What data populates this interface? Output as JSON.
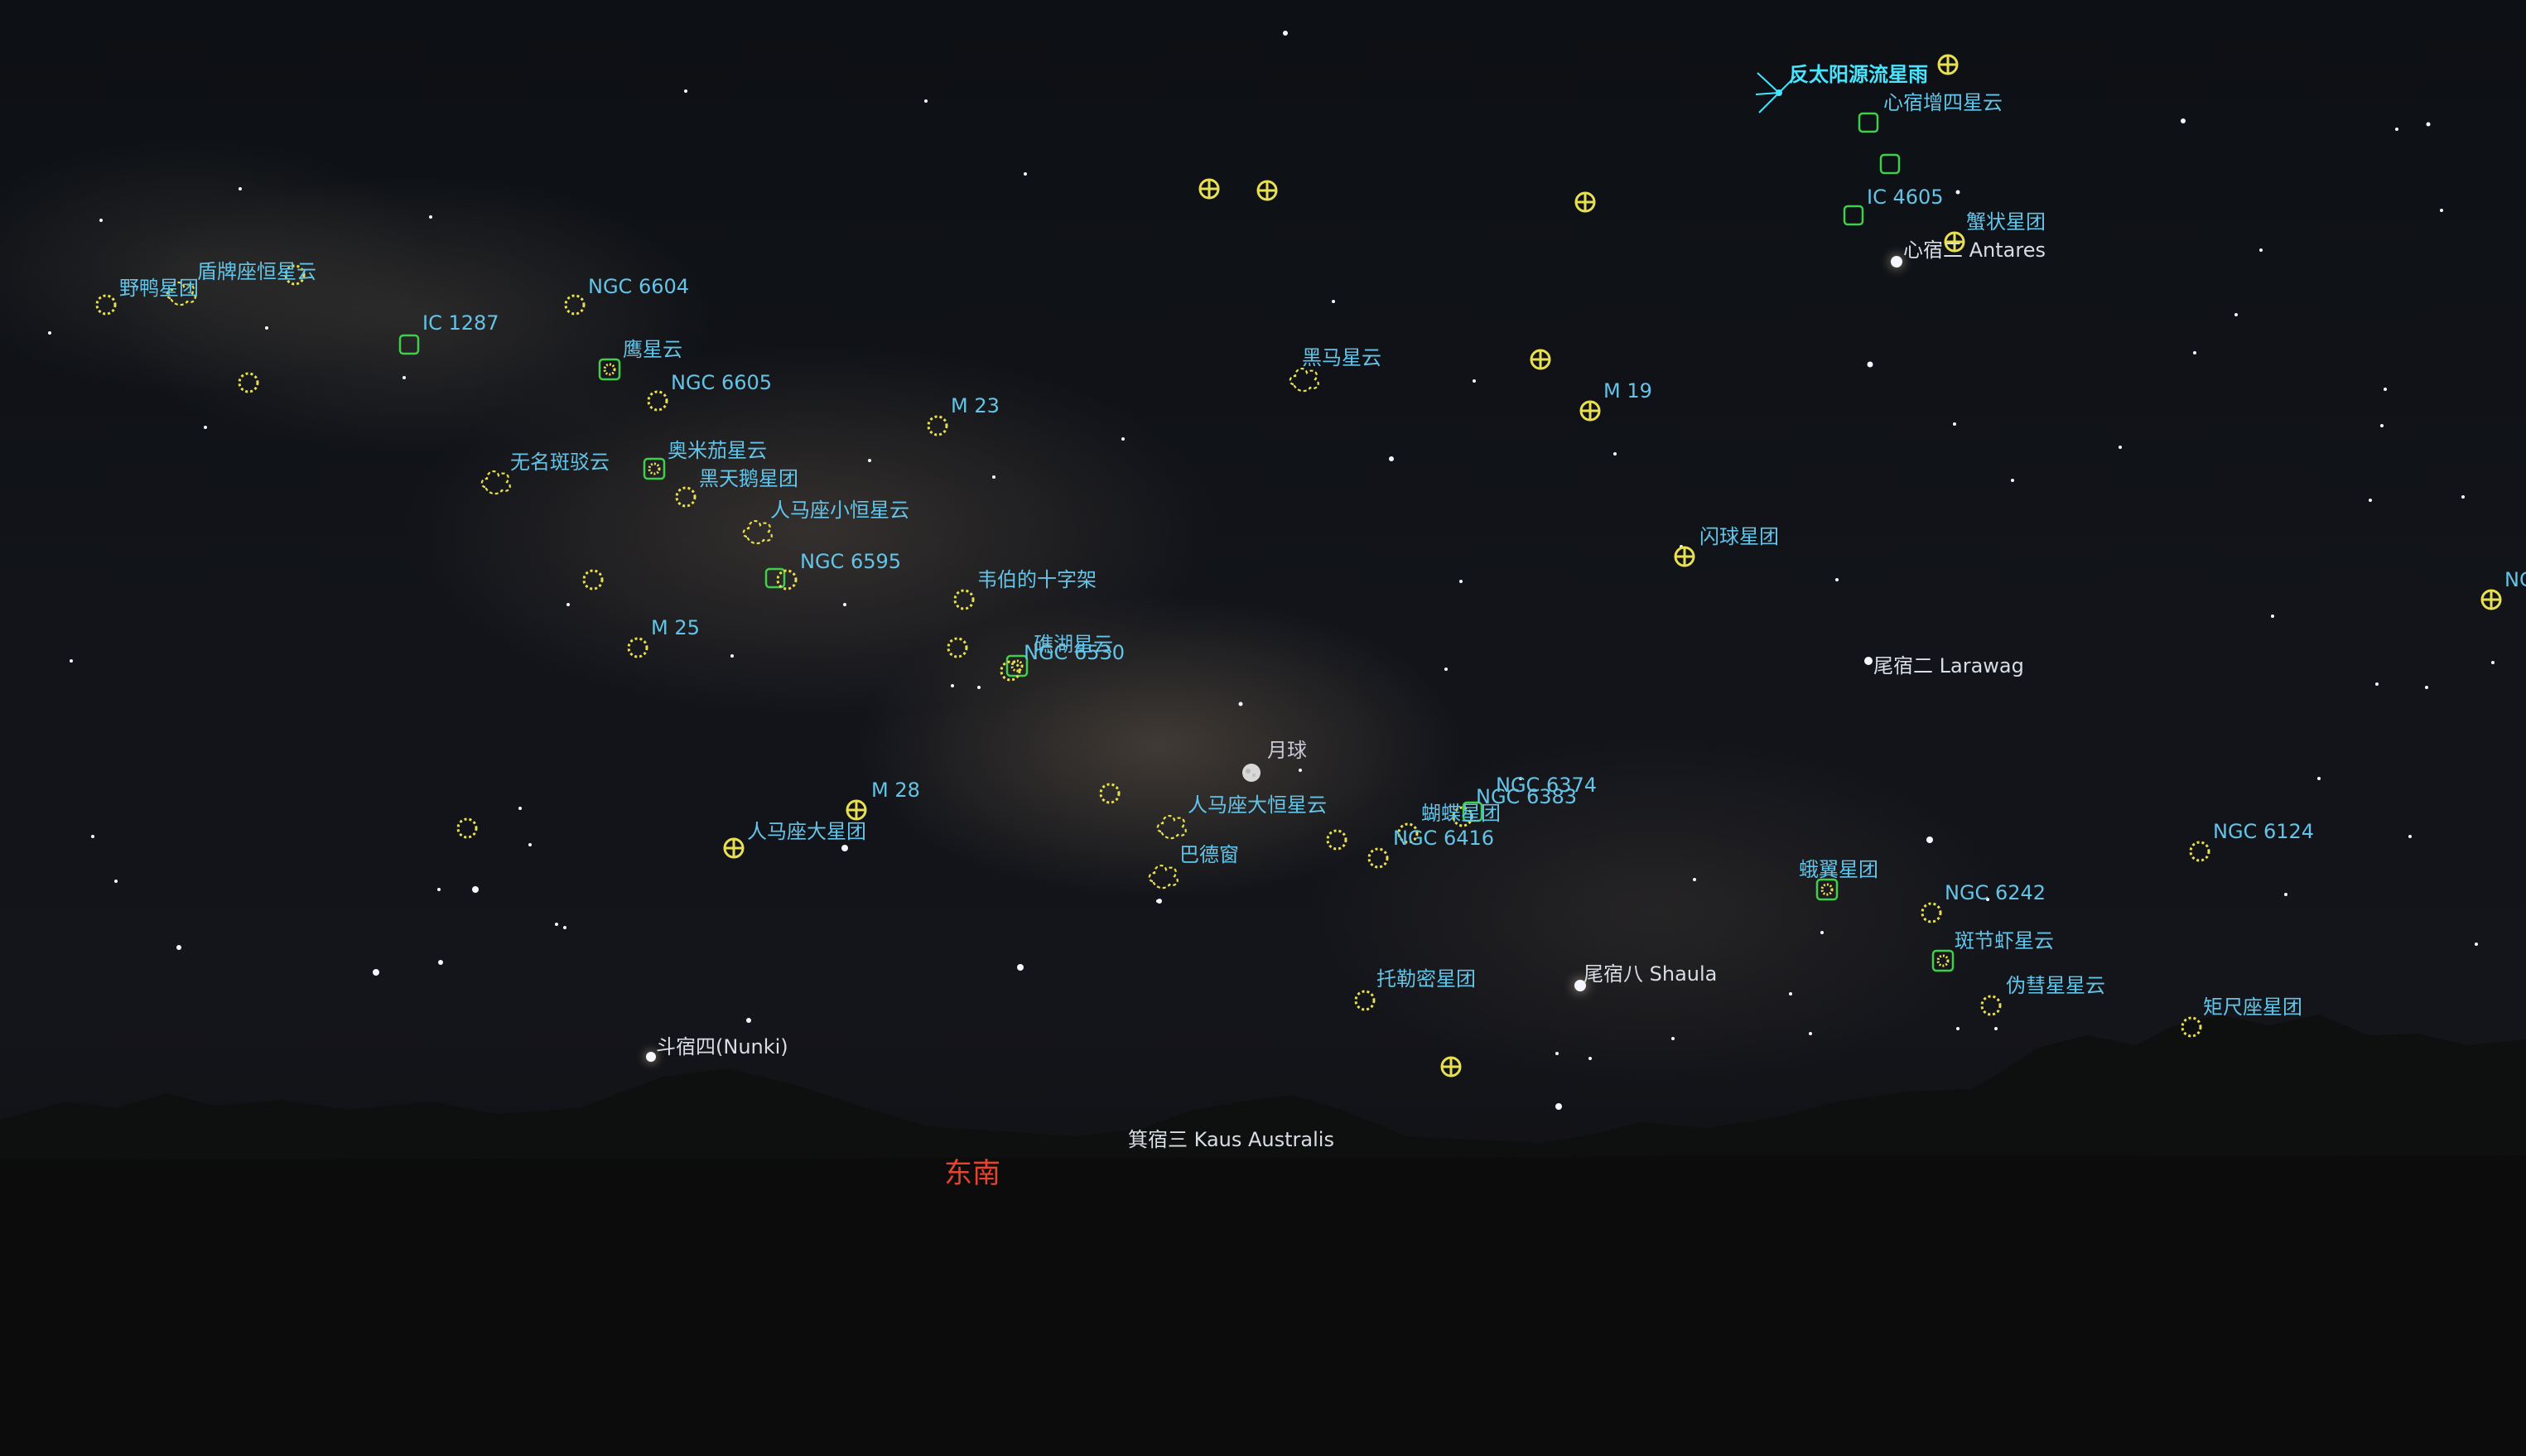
{
  "colors": {
    "dso_label": "#63c4e8",
    "cluster_marker": "#e8e052",
    "nebula_marker": "#3fcf4a",
    "cardinal_label": "#e8432d",
    "meteor_label": "#47e5ff"
  },
  "cardinal": {
    "label": "东南"
  },
  "moon": {
    "label": "月球"
  },
  "meteor_shower": {
    "label": "反太阳源流星雨"
  },
  "star_labels": {
    "antares": "心宿二 Antares",
    "larawag": "尾宿二 Larawag",
    "shaula": "尾宿八 Shaula",
    "nunki": "斗宿四(Nunki)",
    "kaus": "箕宿三 Kaus Australis"
  },
  "dso_labels": {
    "wild_duck": "野鸭星团",
    "scutum_cloud": "盾牌座恒星云",
    "ngc6604": "NGC 6604",
    "ic1287": "IC 1287",
    "eagle": "鹰星云",
    "ngc6605": "NGC 6605",
    "m23": "M 23",
    "omega": "奥米茄星云",
    "black_swan": "黑天鹅星团",
    "barnard": "无名斑驳云",
    "small_sgr_cloud": "人马座小恒星云",
    "ngc6595": "NGC 6595",
    "weber_cross": "韦伯的十字架",
    "m25": "M 25",
    "lagoon": "礁湖星云",
    "ngc6530": "NGC 6530",
    "m28": "M 28",
    "m22": "人马座大星团",
    "big_sgr_cloud": "人马座大恒星云",
    "baade": "巴德窗",
    "ngc6374": "NGC 6374",
    "ngc6383": "NGC 6383",
    "butterfly": "蝴蝶星团",
    "ngc6416": "NGC 6416",
    "ptolemy": "托勒密星团",
    "dark_horse": "黑马星云",
    "m19": "M 19",
    "globular": "闪球星团",
    "ngc6124": "NGC 6124",
    "moth": "蛾翼星团",
    "ngc6242": "NGC 6242",
    "prawn": "斑节虾星云",
    "false_comet": "伪彗星星云",
    "norma": "矩尺座星团",
    "ic4603": "心宿增四星云",
    "ic4605": "IC 4605",
    "crab_cluster": "蟹状星团",
    "ngc_edge": "NG"
  }
}
